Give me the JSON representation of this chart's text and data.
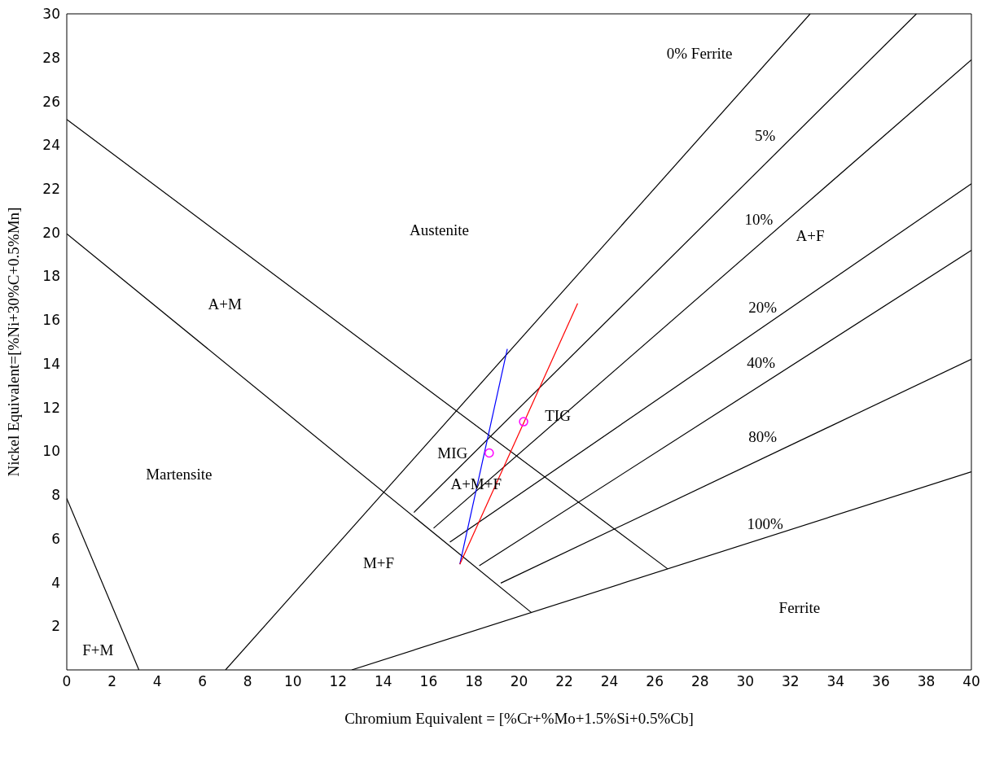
{
  "chart_data": {
    "type": "line",
    "xlabel": "Chromium Equivalent = [%Cr+%Mo+1.5%Si+0.5%Cb]",
    "ylabel": "Nickel Equivalent=[%Ni+30%C+0.5%Mn]",
    "xlim": [
      0,
      40
    ],
    "xticks": [
      0,
      2,
      4,
      6,
      8,
      10,
      12,
      14,
      16,
      18,
      20,
      22,
      24,
      26,
      28,
      30,
      32,
      34,
      36,
      38,
      40
    ],
    "ylim": [
      0,
      30
    ],
    "yticks": [
      2,
      4,
      6,
      8,
      10,
      12,
      14,
      16,
      18,
      20,
      22,
      24,
      26,
      28,
      30
    ],
    "grid": false,
    "marker": "none",
    "line_style": "solid",
    "series": [
      {
        "color": "#000000",
        "x": [
          0,
          26.57
        ],
        "values": [
          25.17,
          4.62
        ]
      },
      {
        "color": "#000000",
        "x": [
          0,
          20.56
        ],
        "values": [
          19.94,
          2.61
        ]
      },
      {
        "color": "#000000",
        "x": [
          0,
          3.19
        ],
        "values": [
          7.84,
          0
        ]
      },
      {
        "color": "#000000",
        "x": [
          7.02,
          32.87
        ],
        "values": [
          0,
          30
        ]
      },
      {
        "color": "#000000",
        "x": [
          15.35,
          37.57
        ],
        "values": [
          7.2,
          30
        ]
      },
      {
        "color": "#000000",
        "x": [
          16.22,
          40
        ],
        "values": [
          6.48,
          27.9
        ]
      },
      {
        "color": "#000000",
        "x": [
          16.94,
          40
        ],
        "values": [
          5.84,
          22.23
        ]
      },
      {
        "color": "#000000",
        "x": [
          18.24,
          40
        ],
        "values": [
          4.76,
          19.19
        ]
      },
      {
        "color": "#000000",
        "x": [
          19.19,
          40
        ],
        "values": [
          3.97,
          14.21
        ]
      },
      {
        "color": "#000000",
        "x": [
          12.6,
          40
        ],
        "values": [
          0,
          9.06
        ]
      },
      {
        "color": "#0000ff",
        "x": [
          17.38,
          19.48
        ],
        "values": [
          4.83,
          14.68
        ]
      },
      {
        "color": "#ff0000",
        "x": [
          17.38,
          22.59
        ],
        "values": [
          4.83,
          16.76
        ]
      },
      {
        "type": "scatter",
        "color": "#ff00ff",
        "marker": "circle",
        "x": [
          18.68,
          20.2
        ],
        "values": [
          9.92,
          11.35
        ]
      }
    ],
    "annotations": [
      "0% Ferrite",
      "5%",
      "10%",
      "A+F",
      "20%",
      "40%",
      "80%",
      "100%",
      "Austenite",
      "A+M",
      "Martensite",
      "F+M",
      "M+F",
      "A+M+F",
      {
        "text": "MIG",
        "x": 18.68,
        "y": 9.92
      },
      {
        "text": "TIG",
        "x": 20.2,
        "y": 11.35
      },
      "Ferrite"
    ]
  }
}
